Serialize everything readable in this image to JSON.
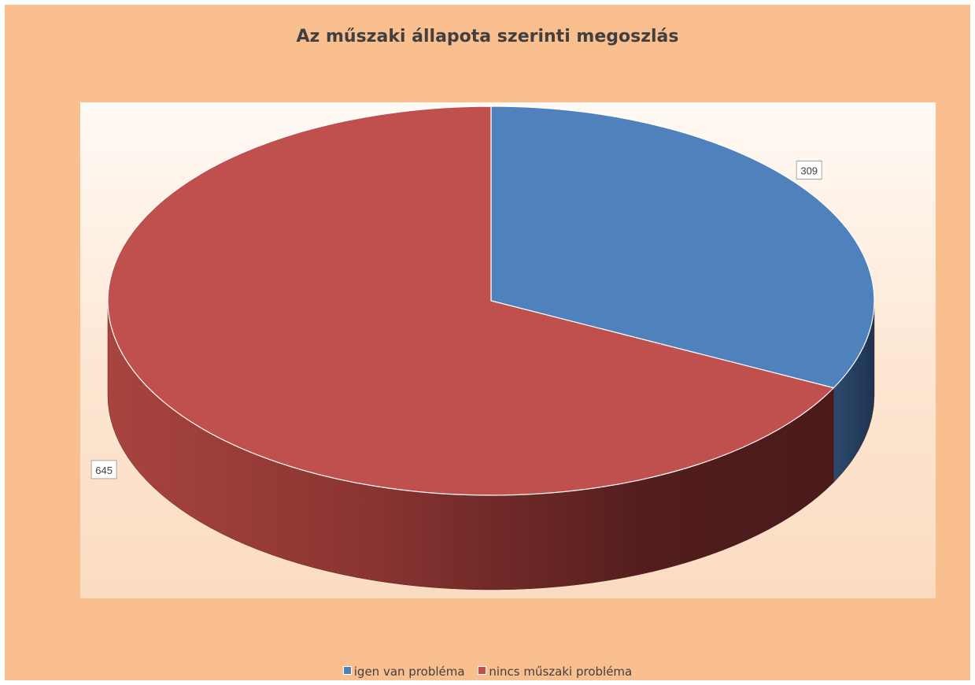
{
  "chart_data": {
    "type": "pie",
    "title": "Az műszaki állapota szerinti megoszlás",
    "categories": [
      "igen van probléma",
      "nincs műszaki probléma"
    ],
    "values": [
      309,
      645
    ],
    "data_labels": [
      "309",
      "645"
    ],
    "colors": [
      "#4f81bd",
      "#c0504d"
    ],
    "legend": "bottom",
    "style": "3d"
  }
}
